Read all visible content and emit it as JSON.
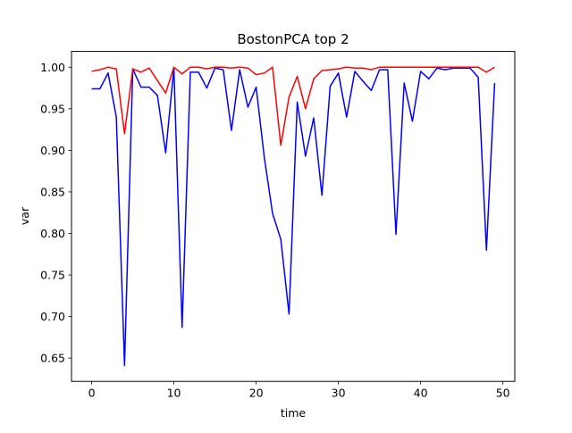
{
  "chart_data": {
    "type": "line",
    "title": "BostonPCA top 2",
    "xlabel": "time",
    "ylabel": "var",
    "xlim": [
      -2.45,
      51.45
    ],
    "ylim": [
      0.622,
      1.019
    ],
    "xticks": [
      0,
      10,
      20,
      30,
      40,
      50
    ],
    "xtick_labels": [
      "0",
      "10",
      "20",
      "30",
      "40",
      "50"
    ],
    "yticks": [
      0.65,
      0.7,
      0.75,
      0.8,
      0.85,
      0.9,
      0.95,
      1.0
    ],
    "ytick_labels": [
      "0.65",
      "0.70",
      "0.75",
      "0.80",
      "0.85",
      "0.90",
      "0.95",
      "1.00"
    ],
    "grid": false,
    "x": [
      0,
      1,
      2,
      3,
      4,
      5,
      6,
      7,
      8,
      9,
      10,
      11,
      12,
      13,
      14,
      15,
      16,
      17,
      18,
      19,
      20,
      21,
      22,
      23,
      24,
      25,
      26,
      27,
      28,
      29,
      30,
      31,
      32,
      33,
      34,
      35,
      36,
      37,
      38,
      39,
      40,
      41,
      42,
      43,
      44,
      45,
      46,
      47,
      48,
      49
    ],
    "series": [
      {
        "color": "#0000ff",
        "values": [
          0.974,
          0.974,
          0.993,
          0.94,
          0.641,
          0.998,
          0.976,
          0.976,
          0.966,
          0.897,
          0.999,
          0.687,
          0.994,
          0.994,
          0.975,
          0.999,
          0.997,
          0.924,
          0.997,
          0.952,
          0.976,
          0.891,
          0.824,
          0.793,
          0.703,
          0.958,
          0.893,
          0.939,
          0.846,
          0.977,
          0.993,
          0.94,
          0.995,
          0.983,
          0.972,
          0.997,
          0.997,
          0.799,
          0.981,
          0.935,
          0.995,
          0.986,
          0.999,
          0.997,
          0.999,
          0.999,
          0.999,
          0.988,
          0.78,
          0.981
        ]
      },
      {
        "color": "#ff0000",
        "values": [
          0.995,
          0.997,
          1.0,
          0.998,
          0.92,
          0.998,
          0.994,
          0.999,
          0.984,
          0.969,
          1.0,
          0.992,
          1.0,
          1.0,
          0.998,
          1.0,
          1.0,
          0.999,
          1.0,
          0.999,
          0.991,
          0.993,
          1.0,
          0.906,
          0.964,
          0.989,
          0.95,
          0.986,
          0.996,
          0.997,
          0.998,
          1.0,
          0.999,
          0.999,
          0.997,
          1.0,
          1.0,
          1.0,
          1.0,
          1.0,
          1.0,
          1.0,
          1.0,
          1.0,
          1.0,
          1.0,
          1.0,
          1.0,
          0.994,
          1.0
        ]
      }
    ]
  }
}
